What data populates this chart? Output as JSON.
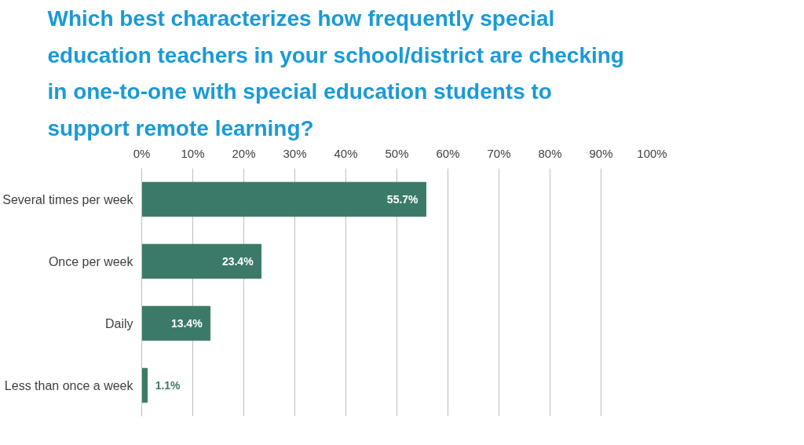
{
  "chart_data": {
    "type": "bar",
    "orientation": "horizontal",
    "title": "Which best characterizes how frequently special education teachers in your school/district are checking in one-to-one with special education students to support remote learning?",
    "categories": [
      "Several times per week",
      "Once per week",
      "Daily",
      "Less than once a week"
    ],
    "values": [
      55.7,
      23.4,
      13.4,
      1.1
    ],
    "value_labels": [
      "55.7%",
      "23.4%",
      "13.4%",
      "1.1%"
    ],
    "color": "#3b7a68",
    "xlim": [
      0,
      100
    ],
    "xticks": [
      {
        "value": 0,
        "label": "0%"
      },
      {
        "value": 10,
        "label": "10%"
      },
      {
        "value": 20,
        "label": "20%"
      },
      {
        "value": 30,
        "label": "30%"
      },
      {
        "value": 40,
        "label": "40%"
      },
      {
        "value": 50,
        "label": "50%"
      },
      {
        "value": 60,
        "label": "60%"
      },
      {
        "value": 70,
        "label": "70%"
      },
      {
        "value": 80,
        "label": "80%"
      },
      {
        "value": 90,
        "label": "90%"
      },
      {
        "value": 100,
        "label": "100%"
      }
    ],
    "grid": "x"
  }
}
